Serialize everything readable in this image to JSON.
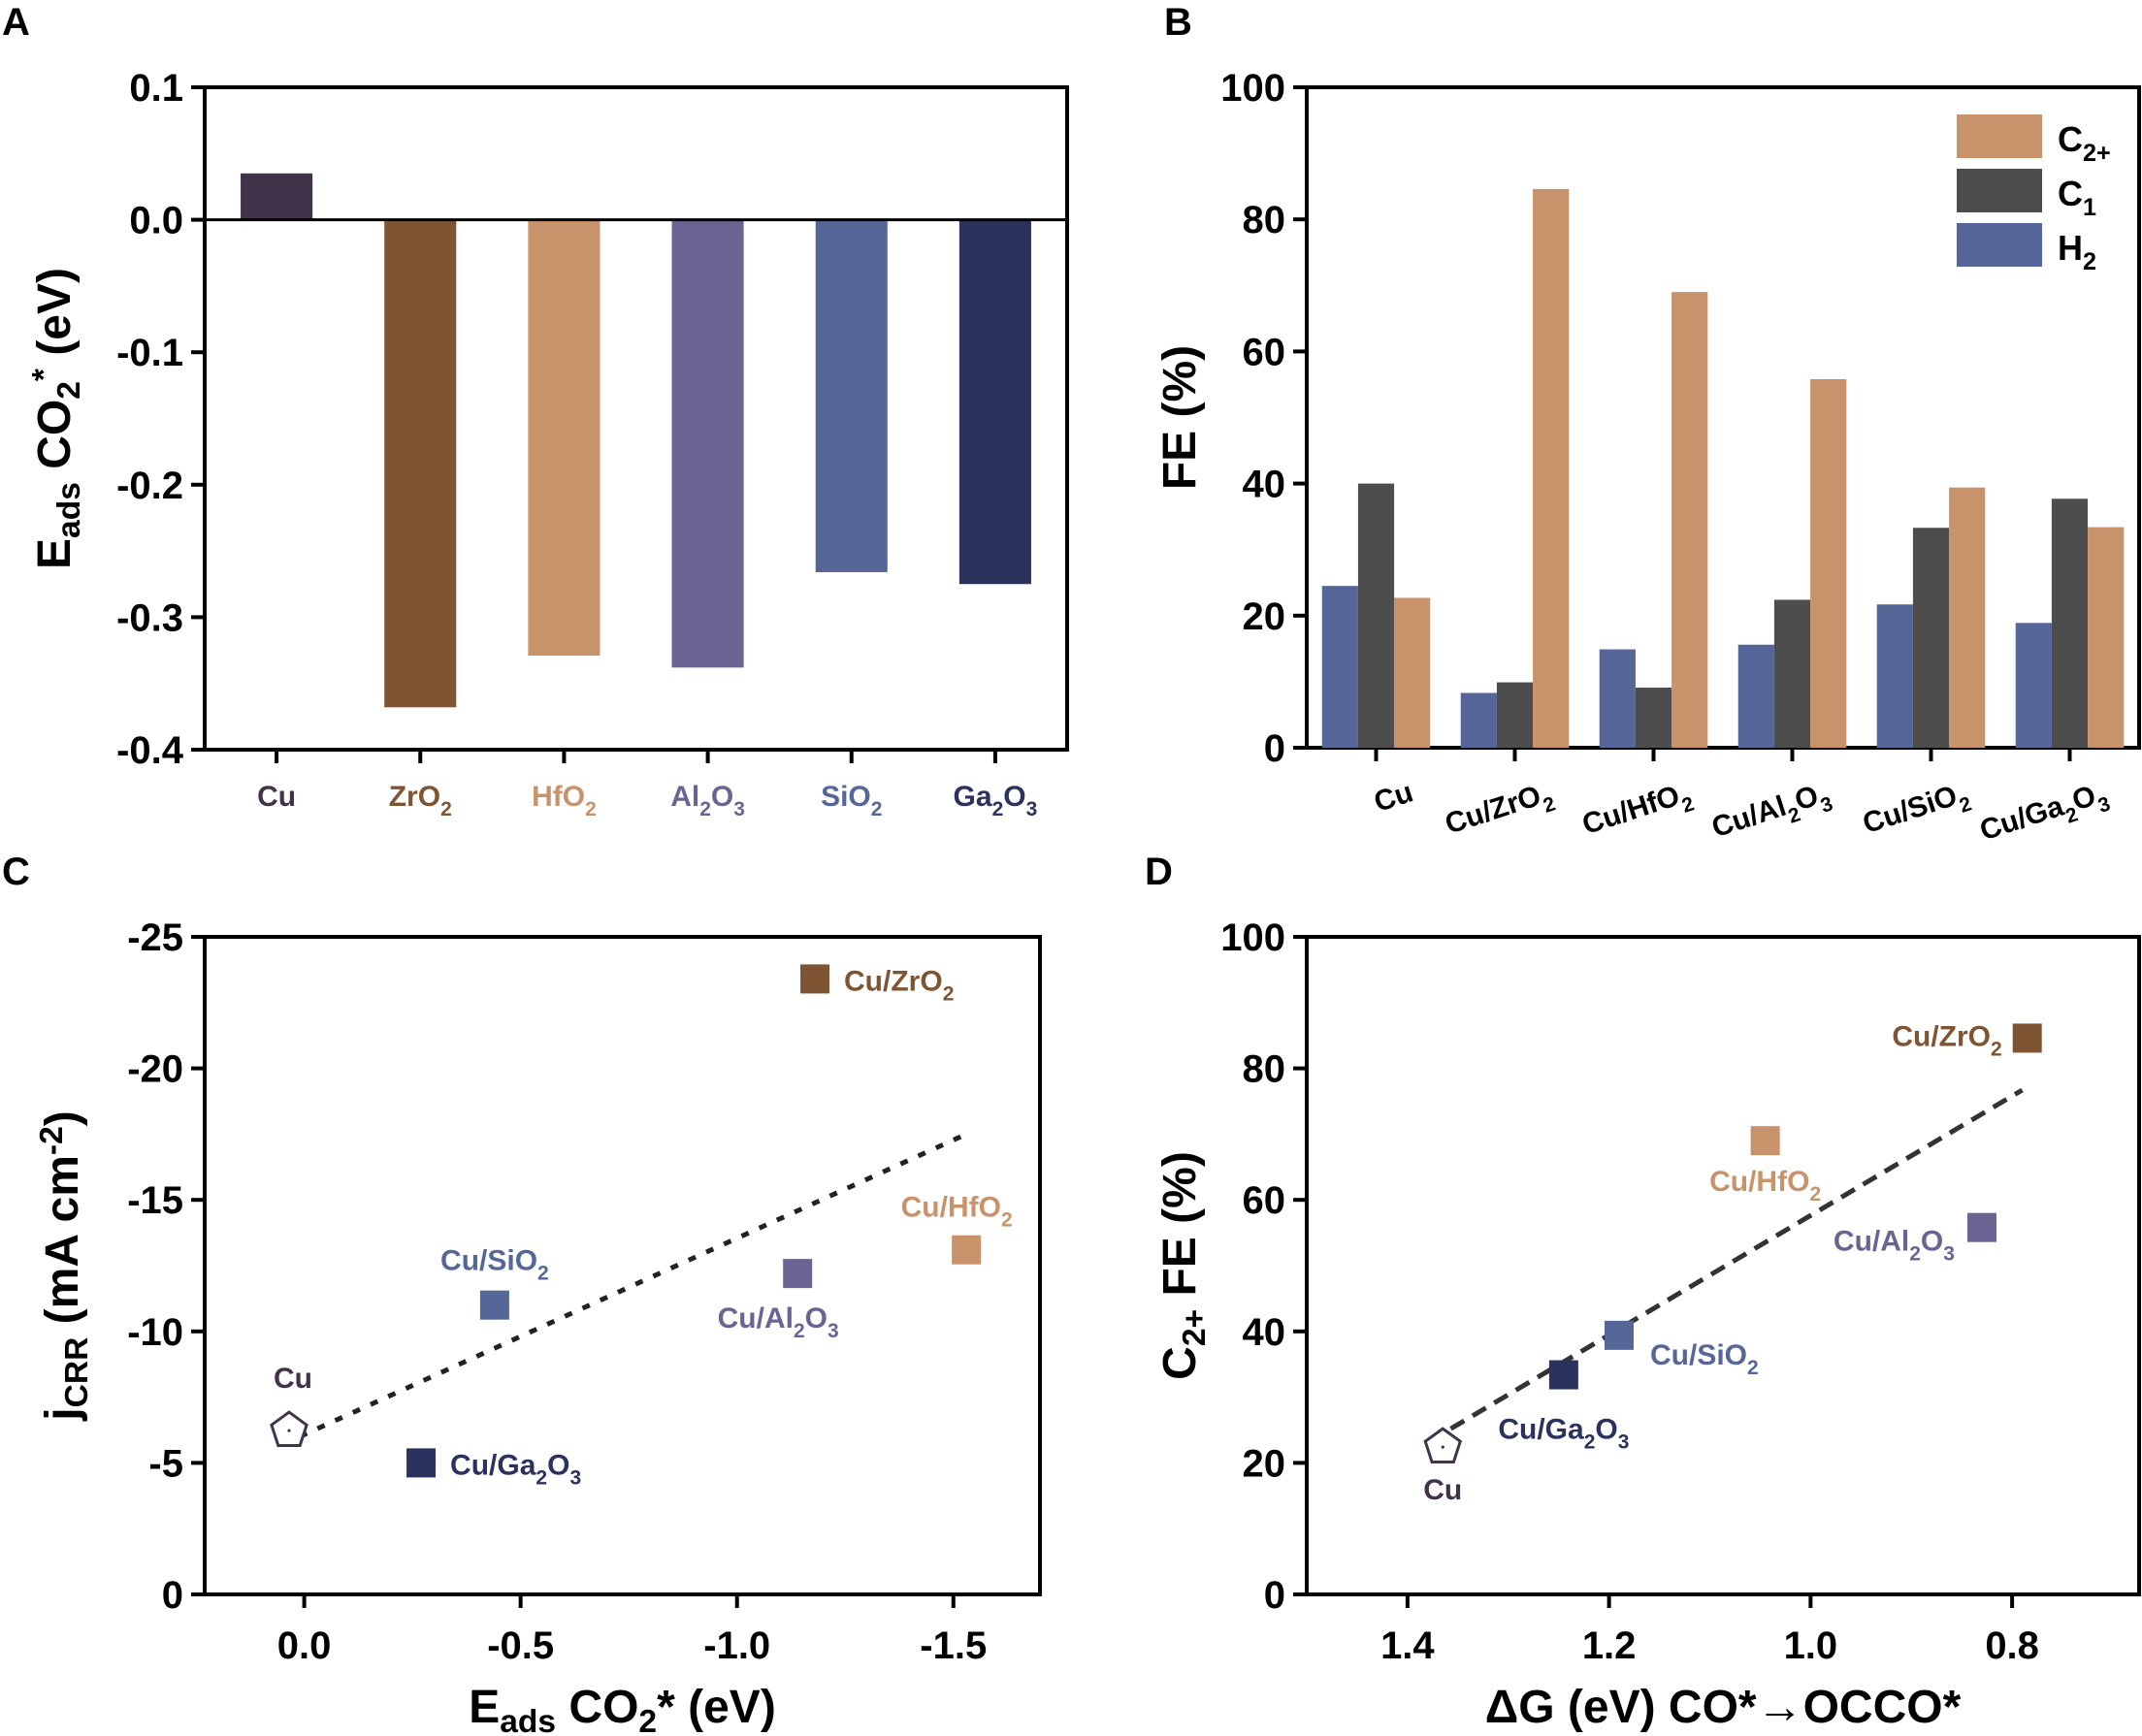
{
  "figure": {
    "panels": [
      "A",
      "B",
      "C",
      "D"
    ]
  },
  "chart_data": [
    {
      "id": "A",
      "type": "bar",
      "title": "",
      "xlabel": "",
      "ylabel": "E_ads CO2* (eV)",
      "ylabel_parts": {
        "main": "E",
        "sub": "ads",
        "rest": " CO",
        "sub2": "2",
        "sup": "*",
        "tail": " (eV)"
      },
      "ylim": [
        -0.4,
        0.1
      ],
      "yticks": [
        0.1,
        0.0,
        -0.1,
        -0.2,
        -0.3,
        -0.4
      ],
      "ytick_labels": [
        "0.1",
        "0.0",
        "-0.1",
        "-0.2",
        "-0.3",
        "-0.4"
      ],
      "grid": false,
      "categories": [
        "Cu",
        "ZrO2",
        "HfO2",
        "Al2O3",
        "SiO2",
        "Ga2O3"
      ],
      "category_labels": [
        {
          "parts": [
            [
              "Cu",
              ""
            ]
          ]
        },
        {
          "parts": [
            [
              "ZrO",
              ""
            ],
            [
              "2",
              "sub"
            ]
          ]
        },
        {
          "parts": [
            [
              "HfO",
              ""
            ],
            [
              "2",
              "sub"
            ]
          ]
        },
        {
          "parts": [
            [
              "Al",
              ""
            ],
            [
              "2",
              "sub"
            ],
            [
              "O",
              ""
            ],
            [
              "3",
              "sub"
            ]
          ]
        },
        {
          "parts": [
            [
              "SiO",
              ""
            ],
            [
              "2",
              "sub"
            ]
          ]
        },
        {
          "parts": [
            [
              "Ga",
              ""
            ],
            [
              "2",
              "sub"
            ],
            [
              "O",
              ""
            ],
            [
              "3",
              "sub"
            ]
          ]
        }
      ],
      "values": [
        0.035,
        -0.368,
        -0.329,
        -0.338,
        -0.266,
        -0.275
      ],
      "colors": [
        "#41334a",
        "#7f5433",
        "#c8926a",
        "#6a6493",
        "#566699",
        "#2b325e"
      ]
    },
    {
      "id": "B",
      "type": "bar",
      "title": "",
      "xlabel": "",
      "ylabel": "FE (%)",
      "ylim": [
        0,
        100
      ],
      "yticks": [
        0,
        20,
        40,
        60,
        80,
        100
      ],
      "ytick_labels": [
        "0",
        "20",
        "40",
        "60",
        "80",
        "100"
      ],
      "grid": false,
      "legend_position": "top-right",
      "categories": [
        "Cu",
        "Cu/ZrO2",
        "Cu/HfO2",
        "Cu/Al2O3",
        "Cu/SiO2",
        "Cu/Ga2O3"
      ],
      "category_labels": [
        {
          "parts": [
            [
              "Cu",
              ""
            ]
          ]
        },
        {
          "parts": [
            [
              "Cu/ZrO",
              ""
            ],
            [
              "2",
              "sub"
            ]
          ]
        },
        {
          "parts": [
            [
              "Cu/HfO",
              ""
            ],
            [
              "2",
              "sub"
            ]
          ]
        },
        {
          "parts": [
            [
              "Cu/Al",
              ""
            ],
            [
              "2",
              "sub"
            ],
            [
              "O",
              ""
            ],
            [
              "3",
              "sub"
            ]
          ]
        },
        {
          "parts": [
            [
              "Cu/SiO",
              ""
            ],
            [
              "2",
              "sub"
            ]
          ]
        },
        {
          "parts": [
            [
              "Cu/Ga",
              ""
            ],
            [
              "2",
              "sub"
            ],
            [
              "O",
              ""
            ],
            [
              "3",
              "sub"
            ]
          ]
        }
      ],
      "series": [
        {
          "name": "H2",
          "label_parts": [
            [
              "H",
              ""
            ],
            [
              "2",
              "sub"
            ]
          ],
          "color": "#566699",
          "values": [
            24.5,
            8.3,
            14.9,
            15.6,
            21.7,
            18.9
          ]
        },
        {
          "name": "C1",
          "label_parts": [
            [
              "C",
              ""
            ],
            [
              "1",
              "sub"
            ]
          ],
          "color": "#4d4d4d",
          "values": [
            40.0,
            9.9,
            9.1,
            22.4,
            33.3,
            37.7
          ]
        },
        {
          "name": "C2+",
          "label_parts": [
            [
              "C",
              ""
            ],
            [
              "2+",
              "sub"
            ]
          ],
          "color": "#c8926a",
          "values": [
            22.7,
            84.6,
            69.0,
            55.8,
            39.4,
            33.4
          ]
        }
      ],
      "legend_order": [
        "C2+",
        "C1",
        "H2"
      ]
    },
    {
      "id": "C",
      "type": "scatter",
      "title": "",
      "xlabel": "E_ads CO2* (eV)",
      "xlabel_parts": [
        [
          "E",
          ""
        ],
        [
          "ads",
          "sub"
        ],
        [
          " CO",
          ""
        ],
        [
          "2",
          "sub"
        ],
        [
          "* (eV)",
          ""
        ]
      ],
      "ylabel": "j_CRR (mA cm-2)",
      "ylabel_parts": [
        [
          "j",
          ""
        ],
        [
          "CRR",
          "sub"
        ],
        [
          " (mA cm",
          ""
        ],
        [
          "-2",
          "sup"
        ],
        [
          ")",
          ""
        ]
      ],
      "xlim": [
        0.23,
        -1.7
      ],
      "ylim": [
        0,
        -25
      ],
      "xticks": [
        0.0,
        -0.5,
        -1.0,
        -1.5
      ],
      "xtick_labels": [
        "0.0",
        "-0.5",
        "-1.0",
        "-1.5"
      ],
      "yticks": [
        0,
        -5,
        -10,
        -15,
        -20,
        -25
      ],
      "ytick_labels": [
        "0",
        "-5",
        "-10",
        "-15",
        "-20",
        "-25"
      ],
      "grid": false,
      "points": [
        {
          "name": "Cu",
          "x": 0.035,
          "y": -6.3,
          "marker": "pentagon-open",
          "color": "#41334a",
          "label_parts": [
            [
              "Cu",
              ""
            ]
          ],
          "label_pos": "above"
        },
        {
          "name": "Cu/Ga2O3",
          "x": -0.27,
          "y": -5.0,
          "marker": "square",
          "color": "#2b325e",
          "label_parts": [
            [
              "Cu/Ga",
              ""
            ],
            [
              "2",
              "sub"
            ],
            [
              "O",
              ""
            ],
            [
              "3",
              "sub"
            ]
          ],
          "label_pos": "right"
        },
        {
          "name": "Cu/SiO2",
          "x": -0.44,
          "y": -11.0,
          "marker": "square",
          "color": "#566699",
          "label_parts": [
            [
              "Cu/SiO",
              ""
            ],
            [
              "2",
              "sub"
            ]
          ],
          "label_pos": "above"
        },
        {
          "name": "Cu/Al2O3",
          "x": -1.14,
          "y": -12.2,
          "marker": "square",
          "color": "#6a6493",
          "label_parts": [
            [
              "Cu/Al",
              ""
            ],
            [
              "2",
              "sub"
            ],
            [
              "O",
              ""
            ],
            [
              "3",
              "sub"
            ]
          ],
          "label_pos": "below"
        },
        {
          "name": "Cu/HfO2",
          "x": -1.53,
          "y": -13.1,
          "marker": "square",
          "color": "#c8926a",
          "label_parts": [
            [
              "Cu/HfO",
              ""
            ],
            [
              "2",
              "sub"
            ]
          ],
          "label_pos": "above-left"
        },
        {
          "name": "Cu/ZrO2",
          "x": -1.18,
          "y": -23.4,
          "marker": "square",
          "color": "#7f5433",
          "label_parts": [
            [
              "Cu/ZrO",
              ""
            ],
            [
              "2",
              "sub"
            ]
          ],
          "label_pos": "right"
        }
      ],
      "fit_line": {
        "style": "dotted",
        "x": [
          0.01,
          -1.53
        ],
        "y": [
          -6.0,
          -17.5
        ],
        "color": "#222222"
      }
    },
    {
      "id": "D",
      "type": "scatter",
      "title": "",
      "xlabel": "ΔG (eV) CO*→OCCO*",
      "xlabel_parts": [
        [
          "ΔG (eV) CO*→OCCO*",
          ""
        ]
      ],
      "ylabel": "C2+ FE (%)",
      "ylabel_parts": [
        [
          "C",
          ""
        ],
        [
          "2+",
          "sub"
        ],
        [
          " FE (%)",
          ""
        ]
      ],
      "xlim": [
        1.5,
        0.674
      ],
      "ylim": [
        0,
        100
      ],
      "xticks": [
        1.4,
        1.2,
        1.0,
        0.8
      ],
      "xtick_labels": [
        "1.4",
        "1.2",
        "1.0",
        "0.8"
      ],
      "yticks": [
        0,
        20,
        40,
        60,
        80,
        100
      ],
      "ytick_labels": [
        "0",
        "20",
        "40",
        "60",
        "80",
        "100"
      ],
      "grid": false,
      "points": [
        {
          "name": "Cu",
          "x": 1.365,
          "y": 22.7,
          "marker": "pentagon-open",
          "color": "#41334a",
          "label_parts": [
            [
              "Cu",
              ""
            ]
          ],
          "label_pos": "below"
        },
        {
          "name": "Cu/Ga2O3",
          "x": 1.245,
          "y": 33.4,
          "marker": "square",
          "color": "#2b325e",
          "label_parts": [
            [
              "Cu/Ga",
              ""
            ],
            [
              "2",
              "sub"
            ],
            [
              "O",
              ""
            ],
            [
              "3",
              "sub"
            ]
          ],
          "label_pos": "below"
        },
        {
          "name": "Cu/SiO2",
          "x": 1.19,
          "y": 39.4,
          "marker": "square",
          "color": "#566699",
          "label_parts": [
            [
              "Cu/SiO",
              ""
            ],
            [
              "2",
              "sub"
            ]
          ],
          "label_pos": "right-below"
        },
        {
          "name": "Cu/HfO2",
          "x": 1.045,
          "y": 69.0,
          "marker": "square",
          "color": "#c8926a",
          "label_parts": [
            [
              "Cu/HfO",
              ""
            ],
            [
              "2",
              "sub"
            ]
          ],
          "label_pos": "below"
        },
        {
          "name": "Cu/Al2O3",
          "x": 0.83,
          "y": 55.8,
          "marker": "square",
          "color": "#6a6493",
          "label_parts": [
            [
              "Cu/Al",
              ""
            ],
            [
              "2",
              "sub"
            ],
            [
              "O",
              ""
            ],
            [
              "3",
              "sub"
            ]
          ],
          "label_pos": "left"
        },
        {
          "name": "Cu/ZrO2",
          "x": 0.785,
          "y": 84.6,
          "marker": "square",
          "color": "#7f5433",
          "label_parts": [
            [
              "Cu/ZrO",
              ""
            ],
            [
              "2",
              "sub"
            ]
          ],
          "label_pos": "left"
        }
      ],
      "fit_line": {
        "style": "dashed",
        "x": [
          1.357,
          0.79
        ],
        "y": [
          25.2,
          76.7
        ],
        "color": "#333333"
      }
    }
  ]
}
